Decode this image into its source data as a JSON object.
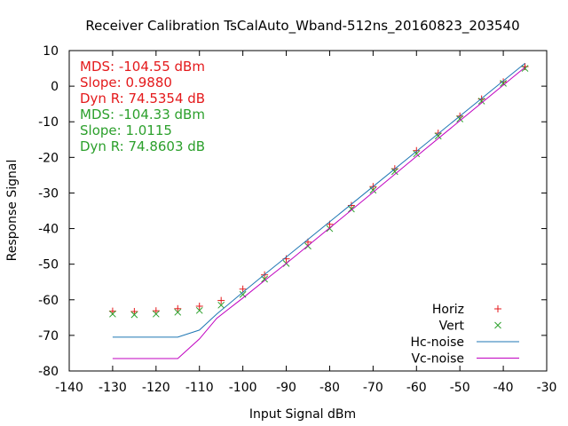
{
  "chart_data": {
    "type": "line",
    "title": "Receiver Calibration TsCalAuto_Wband-512ns_20160823_203540",
    "xlabel": "Input Signal dBm",
    "ylabel": "Response Signal",
    "xlim": [
      -140,
      -30
    ],
    "ylim": [
      -80,
      10
    ],
    "xticks": [
      -140,
      -130,
      -120,
      -110,
      -100,
      -90,
      -80,
      -70,
      -60,
      -50,
      -40,
      -30
    ],
    "yticks": [
      -80,
      -70,
      -60,
      -50,
      -40,
      -30,
      -20,
      -10,
      0,
      10
    ],
    "grid": false,
    "legend_position": "bottom-right",
    "annotations": [
      {
        "text": "MDS: -104.55 dBm",
        "color": "#e41a1c"
      },
      {
        "text": "Slope: 0.9880",
        "color": "#e41a1c"
      },
      {
        "text": "Dyn R: 74.5354 dB",
        "color": "#e41a1c"
      },
      {
        "text": "MDS: -104.33 dBm",
        "color": "#2ca02c"
      },
      {
        "text": "Slope: 1.0115",
        "color": "#2ca02c"
      },
      {
        "text": "Dyn R: 74.8603 dB",
        "color": "#2ca02c"
      }
    ],
    "series": [
      {
        "name": "Horiz",
        "style": "points",
        "marker": "plus",
        "color": "#e41a1c",
        "x": [
          -130,
          -125,
          -120,
          -115,
          -110,
          -105,
          -100,
          -95,
          -90,
          -85,
          -80,
          -75,
          -70,
          -65,
          -60,
          -55,
          -50,
          -45,
          -40,
          -35
        ],
        "y": [
          -63.2,
          -63.3,
          -63.1,
          -62.5,
          -61.8,
          -60.2,
          -57.0,
          -53.0,
          -48.5,
          -43.8,
          -38.8,
          -33.5,
          -28.2,
          -23.2,
          -18.1,
          -13.2,
          -8.4,
          -3.6,
          1.2,
          5.5
        ]
      },
      {
        "name": "Vert",
        "style": "points",
        "marker": "cross",
        "color": "#2ca02c",
        "x": [
          -130,
          -125,
          -120,
          -115,
          -110,
          -105,
          -100,
          -95,
          -90,
          -85,
          -80,
          -75,
          -70,
          -65,
          -60,
          -55,
          -50,
          -45,
          -40,
          -35
        ],
        "y": [
          -64.0,
          -64.2,
          -64.0,
          -63.5,
          -63.0,
          -61.5,
          -58.5,
          -54.2,
          -49.8,
          -44.9,
          -40.0,
          -34.5,
          -29.2,
          -24.0,
          -19.0,
          -14.0,
          -9.2,
          -4.2,
          0.8,
          5.0
        ]
      },
      {
        "name": "Hc-noise",
        "style": "line",
        "color": "#1f77b4",
        "x": [
          -130,
          -125,
          -120,
          -115,
          -110,
          -106,
          -100,
          -95,
          -90,
          -80,
          -70,
          -60,
          -50,
          -40,
          -35
        ],
        "y": [
          -70.5,
          -70.5,
          -70.5,
          -70.5,
          -68.5,
          -64.0,
          -57.9,
          -52.9,
          -48.0,
          -38.1,
          -28.2,
          -18.3,
          -8.4,
          1.5,
          6.4
        ]
      },
      {
        "name": "Vc-noise",
        "style": "line",
        "color": "#c000c0",
        "x": [
          -130,
          -125,
          -120,
          -115,
          -110,
          -106,
          -100,
          -95,
          -90,
          -80,
          -70,
          -60,
          -50,
          -40,
          -35
        ],
        "y": [
          -76.5,
          -76.5,
          -76.5,
          -76.5,
          -71.0,
          -65.2,
          -59.5,
          -54.6,
          -49.8,
          -39.8,
          -29.8,
          -19.7,
          -9.7,
          0.3,
          5.3
        ]
      }
    ]
  }
}
